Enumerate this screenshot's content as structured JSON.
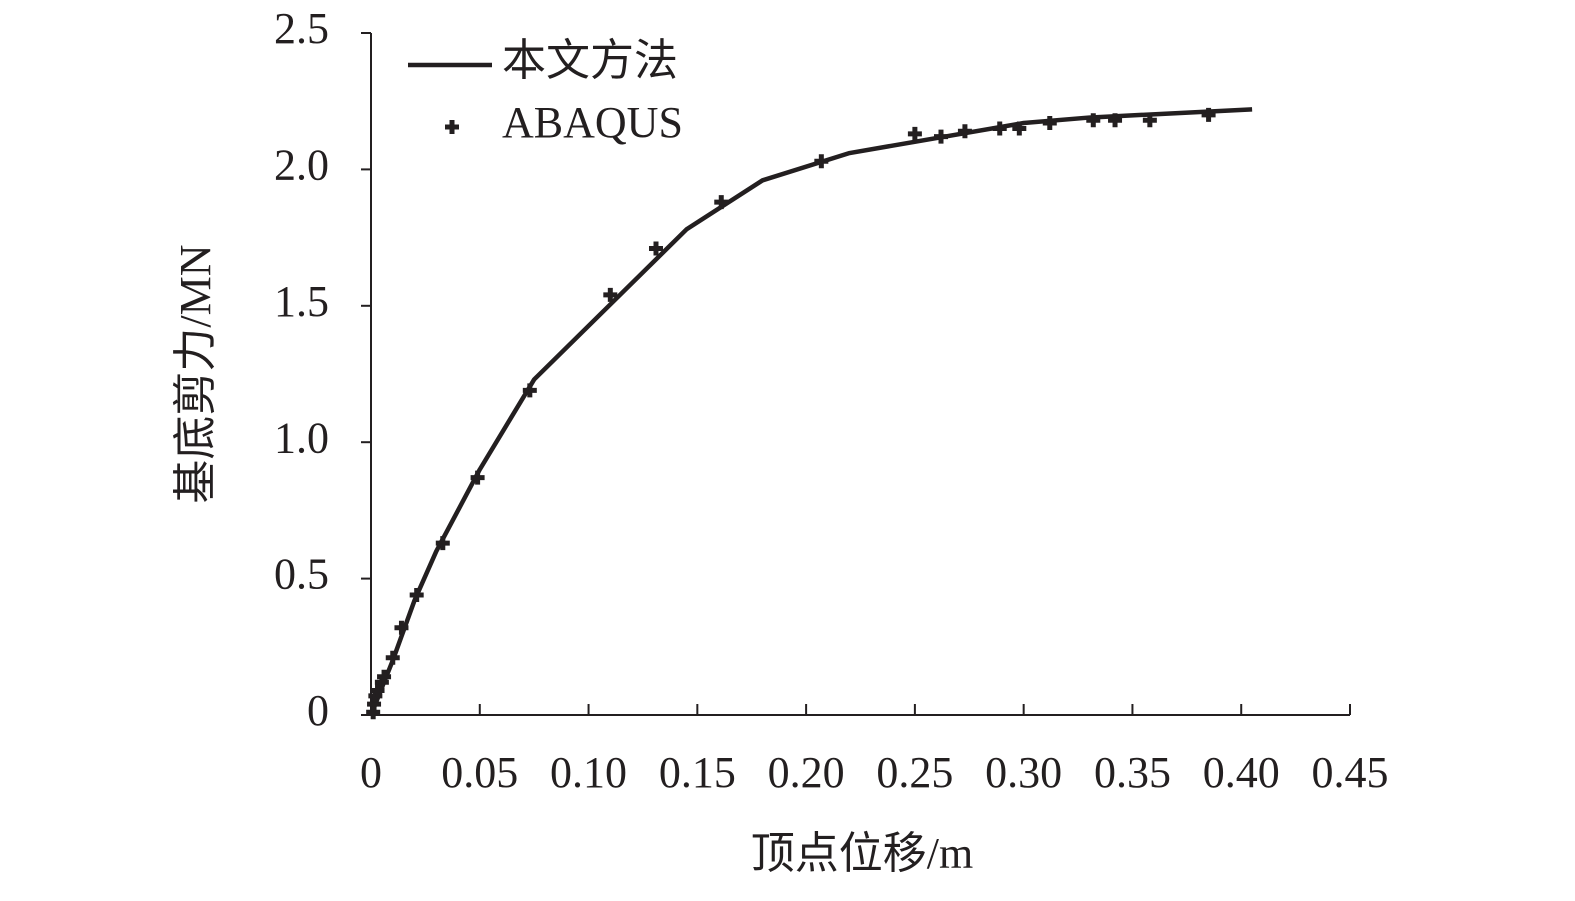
{
  "chart_data": {
    "type": "line",
    "x_label": "顶点位移/m",
    "y_label": "基底剪力/MN",
    "xlim": [
      0,
      0.45
    ],
    "xticks": [
      0,
      0.05,
      {
        "value": 0.1,
        "label": "0.10"
      },
      0.15,
      {
        "value": 0.2,
        "label": "0.20"
      },
      0.25,
      {
        "value": 0.3,
        "label": "0.30"
      },
      0.35,
      {
        "value": 0.4,
        "label": "0.40"
      },
      0.45
    ],
    "ylim": [
      0,
      2.5
    ],
    "yticks": [
      0,
      0.5,
      {
        "value": 1,
        "label": "1.0"
      },
      1.5,
      {
        "value": 2,
        "label": "2.0"
      },
      2.5
    ],
    "legend": "upper left",
    "series": [
      {
        "name": "本文方法",
        "type": "line",
        "color": "#231f20",
        "x": [
          0,
          0.005,
          0.01,
          0.02,
          0.03,
          0.05,
          0.075,
          0.145,
          0.18,
          0.22,
          0.3,
          0.33,
          0.405
        ],
        "values": [
          0,
          0.1,
          0.2,
          0.42,
          0.6,
          0.9,
          1.23,
          1.78,
          1.96,
          2.06,
          2.17,
          2.19,
          2.22
        ]
      },
      {
        "name": "ABAQUS",
        "type": "scatter",
        "color": "#231f20",
        "x": [
          0.001,
          0.0014,
          0.002,
          0.003,
          0.005,
          0.006,
          0.01,
          0.014,
          0.021,
          0.033,
          0.049,
          0.073,
          0.11,
          0.131,
          0.161,
          0.207,
          0.25,
          0.262,
          0.273,
          0.289,
          0.298,
          0.312,
          0.332,
          0.342,
          0.358,
          0.385
        ],
        "values": [
          0.01,
          0.04,
          0.07,
          0.09,
          0.12,
          0.14,
          0.21,
          0.32,
          0.44,
          0.63,
          0.87,
          1.19,
          1.54,
          1.71,
          1.88,
          2.03,
          2.13,
          2.12,
          2.14,
          2.15,
          2.15,
          2.17,
          2.18,
          2.18,
          2.18,
          2.2
        ]
      }
    ]
  }
}
